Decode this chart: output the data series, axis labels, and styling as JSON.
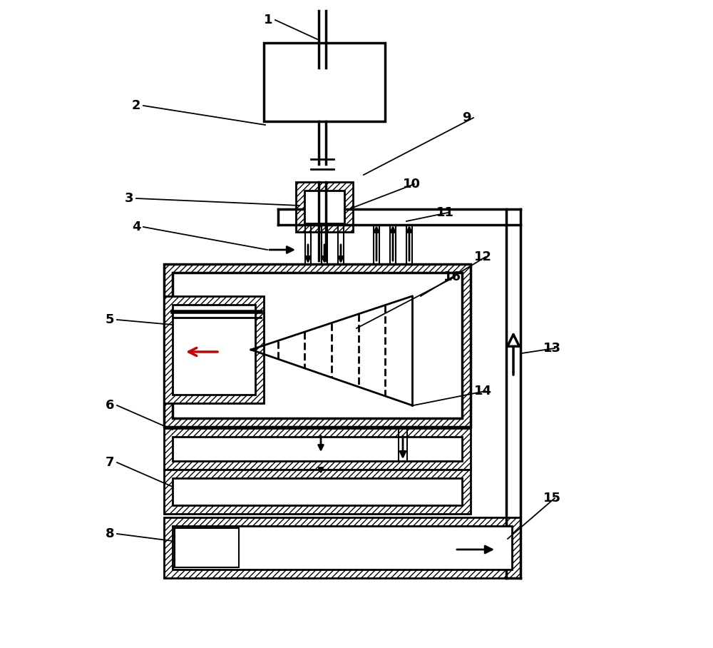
{
  "bg_color": "#ffffff",
  "line_color": "#000000",
  "labels_data": [
    [
      1,
      370,
      28,
      445,
      55
    ],
    [
      2,
      185,
      148,
      372,
      175
    ],
    [
      3,
      175,
      278,
      420,
      288
    ],
    [
      4,
      185,
      318,
      375,
      350
    ],
    [
      5,
      148,
      448,
      242,
      455
    ],
    [
      6,
      148,
      568,
      242,
      602
    ],
    [
      7,
      148,
      648,
      242,
      682
    ],
    [
      8,
      148,
      748,
      242,
      758
    ],
    [
      9,
      648,
      165,
      510,
      245
    ],
    [
      10,
      565,
      258,
      492,
      292
    ],
    [
      11,
      612,
      298,
      570,
      310
    ],
    [
      12,
      665,
      360,
      590,
      415
    ],
    [
      13,
      762,
      488,
      732,
      495
    ],
    [
      14,
      665,
      548,
      580,
      568
    ],
    [
      15,
      762,
      698,
      712,
      755
    ],
    [
      16,
      622,
      388,
      500,
      460
    ]
  ]
}
